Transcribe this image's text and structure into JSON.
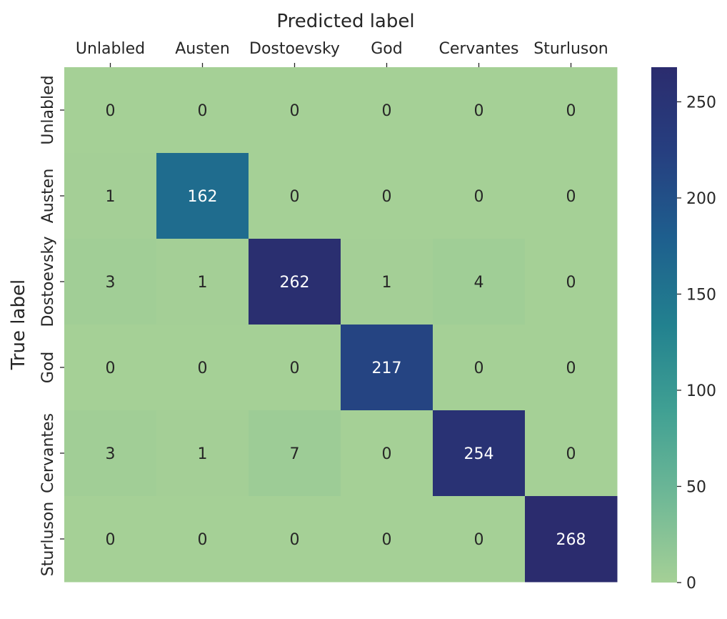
{
  "chart_data": {
    "type": "heatmap",
    "xlabel": "Predicted label",
    "ylabel": "True label",
    "x_categories": [
      "Unlabled",
      "Austen",
      "Dostoevsky",
      "God",
      "Cervantes",
      "Sturluson"
    ],
    "y_categories": [
      "Unlabled",
      "Austen",
      "Dostoevsky",
      "God",
      "Cervantes",
      "Sturluson"
    ],
    "matrix": [
      [
        0,
        0,
        0,
        0,
        0,
        0
      ],
      [
        1,
        162,
        0,
        0,
        0,
        0
      ],
      [
        3,
        1,
        262,
        1,
        4,
        0
      ],
      [
        0,
        0,
        0,
        217,
        0,
        0
      ],
      [
        3,
        1,
        7,
        0,
        254,
        0
      ],
      [
        0,
        0,
        0,
        0,
        0,
        268
      ]
    ],
    "colorbar": {
      "range": [
        0,
        268
      ],
      "ticks": [
        0,
        50,
        100,
        150,
        200,
        250
      ],
      "colormap": "crest",
      "stops": [
        "#a5d096",
        "#6fb896",
        "#40a093",
        "#22818f",
        "#1e5f8e",
        "#263f80",
        "#2b2c6e"
      ]
    },
    "x_axis_position": "top",
    "annotations": true
  }
}
